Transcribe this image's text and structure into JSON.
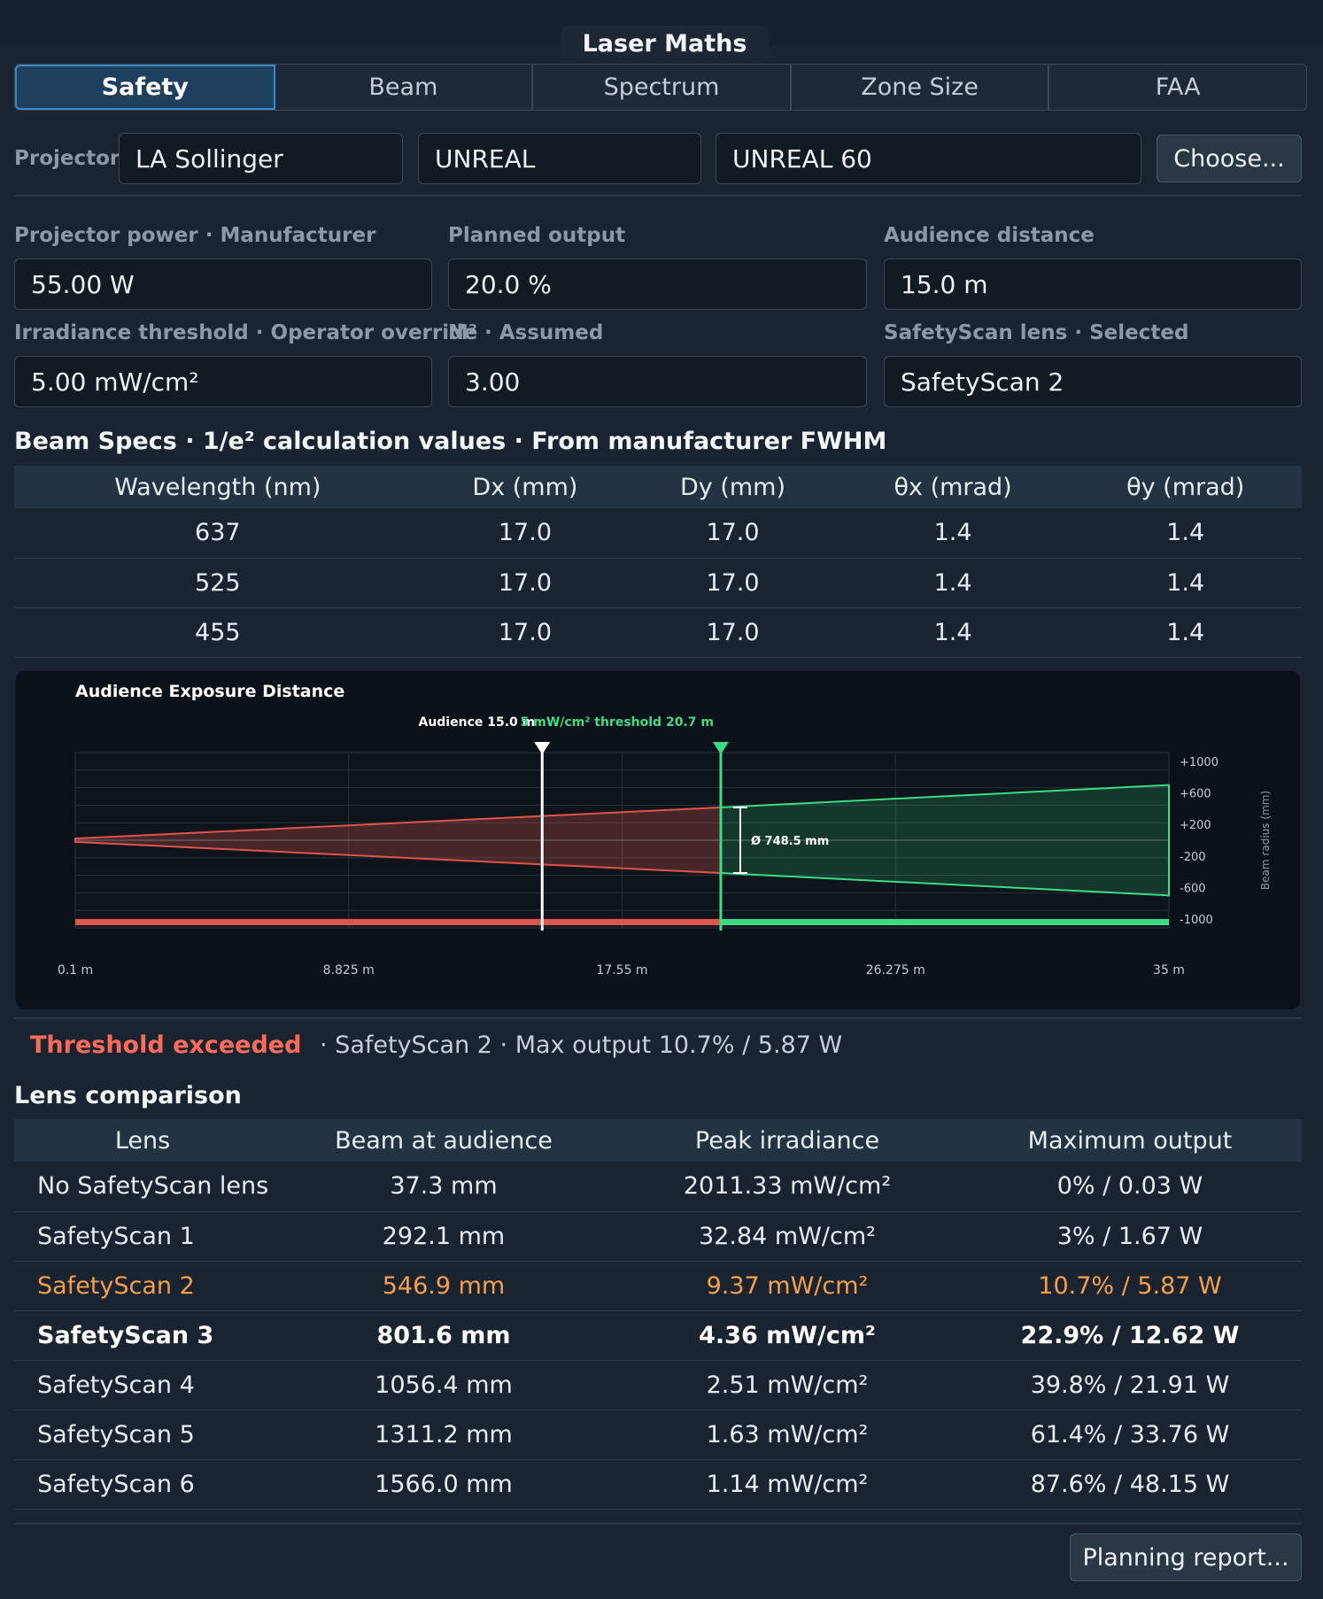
{
  "window": {
    "title": "Laser Maths"
  },
  "tabs": [
    {
      "label": "Safety"
    },
    {
      "label": "Beam"
    },
    {
      "label": "Spectrum"
    },
    {
      "label": "Zone Size"
    },
    {
      "label": "FAA"
    }
  ],
  "projector": {
    "label": "Projector",
    "manufacturer": "LA Sollinger",
    "series": "UNREAL",
    "model": "UNREAL 60",
    "choose_label": "Choose..."
  },
  "fields": {
    "power": {
      "label": "Projector power · Manufacturer",
      "value": "55.00 W"
    },
    "planned": {
      "label": "Planned output",
      "value": "20.0 %"
    },
    "distance": {
      "label": "Audience distance",
      "value": "15.0 m"
    },
    "irradiance": {
      "label": "Irradiance threshold · Operator override",
      "value": "5.00 mW/cm²"
    },
    "m2": {
      "label": "M² · Assumed",
      "value": "3.00"
    },
    "lens": {
      "label": "SafetyScan lens · Selected",
      "value": "SafetyScan 2"
    }
  },
  "beam_specs": {
    "title": "Beam Specs · 1/e² calculation values · From manufacturer FWHM",
    "headers": [
      "Wavelength (nm)",
      "Dx (mm)",
      "Dy (mm)",
      "θx (mrad)",
      "θy (mrad)"
    ],
    "rows": [
      [
        "637",
        "17.0",
        "17.0",
        "1.4",
        "1.4"
      ],
      [
        "525",
        "17.0",
        "17.0",
        "1.4",
        "1.4"
      ],
      [
        "455",
        "17.0",
        "17.0",
        "1.4",
        "1.4"
      ]
    ]
  },
  "chart_data": {
    "type": "area",
    "title": "Audience Exposure Distance",
    "xlabel": "",
    "ylabel": "Beam radius (mm)",
    "xlim": [
      0.1,
      35
    ],
    "ylim": [
      -1000,
      1000
    ],
    "x_ticks": [
      "0.1 m",
      "8.825 m",
      "17.55 m",
      "26.275 m",
      "35 m"
    ],
    "y_ticks": [
      "+1000",
      "+600",
      "+200",
      "-200",
      "-600",
      "-1000"
    ],
    "markers": [
      {
        "label": "Audience",
        "value_text": "15.0 m",
        "x": 15.0,
        "color": "#ffffff"
      },
      {
        "label": "5 mW/cm² threshold",
        "value_text": "20.7 m",
        "x": 20.7,
        "color": "#3ddc84"
      }
    ],
    "envelope": {
      "x": [
        0.1,
        20.7,
        35
      ],
      "radius": [
        19,
        374,
        630
      ],
      "unsafe_color": "#e0554b",
      "safe_color": "#3ddc84"
    },
    "diameter_annotation": {
      "x": 20.7,
      "text": "Ø 748.5 mm"
    }
  },
  "status": {
    "warning": "Threshold exceeded",
    "detail": "· SafetyScan 2 · Max output 10.7% / 5.87 W"
  },
  "lens_comparison": {
    "title": "Lens comparison",
    "headers": [
      "Lens",
      "Beam at audience",
      "Peak irradiance",
      "Maximum output"
    ],
    "rows": [
      [
        "No SafetyScan lens",
        "37.3 mm",
        "2011.33 mW/cm²",
        "0% / 0.03 W"
      ],
      [
        "SafetyScan 1",
        "292.1 mm",
        "32.84 mW/cm²",
        "3% / 1.67 W"
      ],
      [
        "SafetyScan 2",
        "546.9 mm",
        "9.37 mW/cm²",
        "10.7% / 5.87 W"
      ],
      [
        "SafetyScan 3",
        "801.6 mm",
        "4.36 mW/cm²",
        "22.9% / 12.62 W"
      ],
      [
        "SafetyScan 4",
        "1056.4 mm",
        "2.51 mW/cm²",
        "39.8% / 21.91 W"
      ],
      [
        "SafetyScan 5",
        "1311.2 mm",
        "1.63 mW/cm²",
        "61.4% / 33.76 W"
      ],
      [
        "SafetyScan 6",
        "1566.0 mm",
        "1.14 mW/cm²",
        "87.6% / 48.15 W"
      ]
    ],
    "selected_index": 2,
    "bold_index": 3
  },
  "footer": {
    "report_label": "Planning report..."
  }
}
